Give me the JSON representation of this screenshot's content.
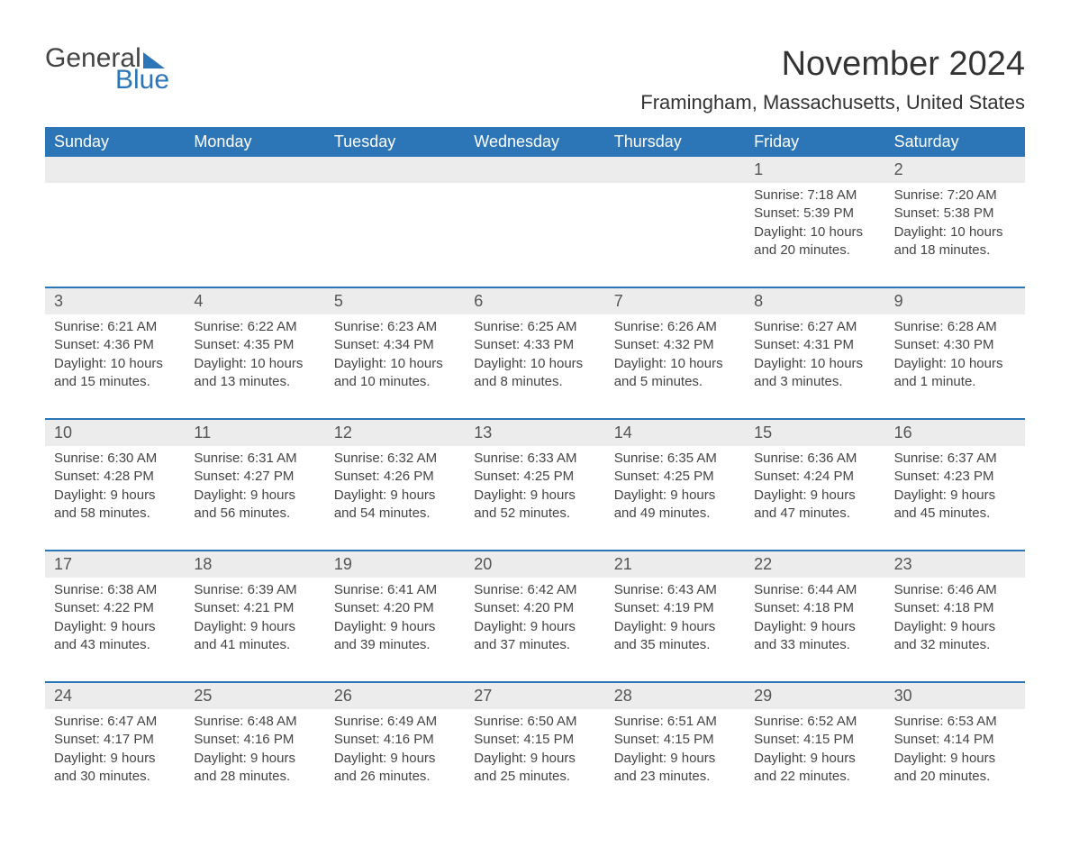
{
  "brand": {
    "text_general": "General",
    "text_blue": "Blue",
    "accent_color": "#2c75b6"
  },
  "title": "November 2024",
  "location": "Framingham, Massachusetts, United States",
  "weekday_header_bg": "#2c75b6",
  "weekday_header_fg": "#ffffff",
  "daynum_bg": "#ececec",
  "text_color": "#444444",
  "weekdays": [
    "Sunday",
    "Monday",
    "Tuesday",
    "Wednesday",
    "Thursday",
    "Friday",
    "Saturday"
  ],
  "weeks": [
    {
      "days": [
        {
          "num": "",
          "sunrise": "",
          "sunset": "",
          "daylight": ""
        },
        {
          "num": "",
          "sunrise": "",
          "sunset": "",
          "daylight": ""
        },
        {
          "num": "",
          "sunrise": "",
          "sunset": "",
          "daylight": ""
        },
        {
          "num": "",
          "sunrise": "",
          "sunset": "",
          "daylight": ""
        },
        {
          "num": "",
          "sunrise": "",
          "sunset": "",
          "daylight": ""
        },
        {
          "num": "1",
          "sunrise": "Sunrise: 7:18 AM",
          "sunset": "Sunset: 5:39 PM",
          "daylight": "Daylight: 10 hours and 20 minutes."
        },
        {
          "num": "2",
          "sunrise": "Sunrise: 7:20 AM",
          "sunset": "Sunset: 5:38 PM",
          "daylight": "Daylight: 10 hours and 18 minutes."
        }
      ]
    },
    {
      "days": [
        {
          "num": "3",
          "sunrise": "Sunrise: 6:21 AM",
          "sunset": "Sunset: 4:36 PM",
          "daylight": "Daylight: 10 hours and 15 minutes."
        },
        {
          "num": "4",
          "sunrise": "Sunrise: 6:22 AM",
          "sunset": "Sunset: 4:35 PM",
          "daylight": "Daylight: 10 hours and 13 minutes."
        },
        {
          "num": "5",
          "sunrise": "Sunrise: 6:23 AM",
          "sunset": "Sunset: 4:34 PM",
          "daylight": "Daylight: 10 hours and 10 minutes."
        },
        {
          "num": "6",
          "sunrise": "Sunrise: 6:25 AM",
          "sunset": "Sunset: 4:33 PM",
          "daylight": "Daylight: 10 hours and 8 minutes."
        },
        {
          "num": "7",
          "sunrise": "Sunrise: 6:26 AM",
          "sunset": "Sunset: 4:32 PM",
          "daylight": "Daylight: 10 hours and 5 minutes."
        },
        {
          "num": "8",
          "sunrise": "Sunrise: 6:27 AM",
          "sunset": "Sunset: 4:31 PM",
          "daylight": "Daylight: 10 hours and 3 minutes."
        },
        {
          "num": "9",
          "sunrise": "Sunrise: 6:28 AM",
          "sunset": "Sunset: 4:30 PM",
          "daylight": "Daylight: 10 hours and 1 minute."
        }
      ]
    },
    {
      "days": [
        {
          "num": "10",
          "sunrise": "Sunrise: 6:30 AM",
          "sunset": "Sunset: 4:28 PM",
          "daylight": "Daylight: 9 hours and 58 minutes."
        },
        {
          "num": "11",
          "sunrise": "Sunrise: 6:31 AM",
          "sunset": "Sunset: 4:27 PM",
          "daylight": "Daylight: 9 hours and 56 minutes."
        },
        {
          "num": "12",
          "sunrise": "Sunrise: 6:32 AM",
          "sunset": "Sunset: 4:26 PM",
          "daylight": "Daylight: 9 hours and 54 minutes."
        },
        {
          "num": "13",
          "sunrise": "Sunrise: 6:33 AM",
          "sunset": "Sunset: 4:25 PM",
          "daylight": "Daylight: 9 hours and 52 minutes."
        },
        {
          "num": "14",
          "sunrise": "Sunrise: 6:35 AM",
          "sunset": "Sunset: 4:25 PM",
          "daylight": "Daylight: 9 hours and 49 minutes."
        },
        {
          "num": "15",
          "sunrise": "Sunrise: 6:36 AM",
          "sunset": "Sunset: 4:24 PM",
          "daylight": "Daylight: 9 hours and 47 minutes."
        },
        {
          "num": "16",
          "sunrise": "Sunrise: 6:37 AM",
          "sunset": "Sunset: 4:23 PM",
          "daylight": "Daylight: 9 hours and 45 minutes."
        }
      ]
    },
    {
      "days": [
        {
          "num": "17",
          "sunrise": "Sunrise: 6:38 AM",
          "sunset": "Sunset: 4:22 PM",
          "daylight": "Daylight: 9 hours and 43 minutes."
        },
        {
          "num": "18",
          "sunrise": "Sunrise: 6:39 AM",
          "sunset": "Sunset: 4:21 PM",
          "daylight": "Daylight: 9 hours and 41 minutes."
        },
        {
          "num": "19",
          "sunrise": "Sunrise: 6:41 AM",
          "sunset": "Sunset: 4:20 PM",
          "daylight": "Daylight: 9 hours and 39 minutes."
        },
        {
          "num": "20",
          "sunrise": "Sunrise: 6:42 AM",
          "sunset": "Sunset: 4:20 PM",
          "daylight": "Daylight: 9 hours and 37 minutes."
        },
        {
          "num": "21",
          "sunrise": "Sunrise: 6:43 AM",
          "sunset": "Sunset: 4:19 PM",
          "daylight": "Daylight: 9 hours and 35 minutes."
        },
        {
          "num": "22",
          "sunrise": "Sunrise: 6:44 AM",
          "sunset": "Sunset: 4:18 PM",
          "daylight": "Daylight: 9 hours and 33 minutes."
        },
        {
          "num": "23",
          "sunrise": "Sunrise: 6:46 AM",
          "sunset": "Sunset: 4:18 PM",
          "daylight": "Daylight: 9 hours and 32 minutes."
        }
      ]
    },
    {
      "days": [
        {
          "num": "24",
          "sunrise": "Sunrise: 6:47 AM",
          "sunset": "Sunset: 4:17 PM",
          "daylight": "Daylight: 9 hours and 30 minutes."
        },
        {
          "num": "25",
          "sunrise": "Sunrise: 6:48 AM",
          "sunset": "Sunset: 4:16 PM",
          "daylight": "Daylight: 9 hours and 28 minutes."
        },
        {
          "num": "26",
          "sunrise": "Sunrise: 6:49 AM",
          "sunset": "Sunset: 4:16 PM",
          "daylight": "Daylight: 9 hours and 26 minutes."
        },
        {
          "num": "27",
          "sunrise": "Sunrise: 6:50 AM",
          "sunset": "Sunset: 4:15 PM",
          "daylight": "Daylight: 9 hours and 25 minutes."
        },
        {
          "num": "28",
          "sunrise": "Sunrise: 6:51 AM",
          "sunset": "Sunset: 4:15 PM",
          "daylight": "Daylight: 9 hours and 23 minutes."
        },
        {
          "num": "29",
          "sunrise": "Sunrise: 6:52 AM",
          "sunset": "Sunset: 4:15 PM",
          "daylight": "Daylight: 9 hours and 22 minutes."
        },
        {
          "num": "30",
          "sunrise": "Sunrise: 6:53 AM",
          "sunset": "Sunset: 4:14 PM",
          "daylight": "Daylight: 9 hours and 20 minutes."
        }
      ]
    }
  ]
}
